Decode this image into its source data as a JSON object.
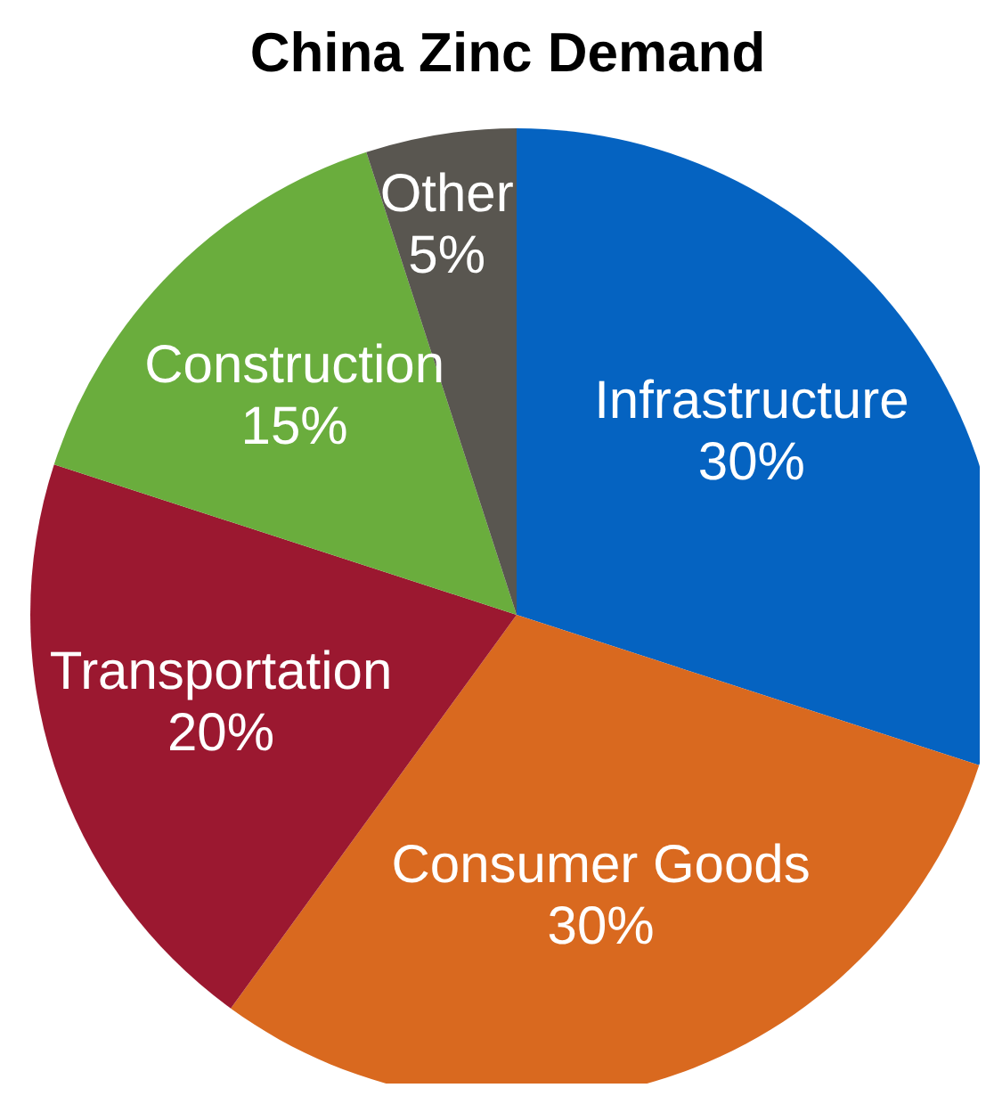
{
  "chart_data": {
    "type": "pie",
    "title": "China Zinc Demand",
    "categories": [
      "Infrastructure",
      "Consumer Goods",
      "Transportation",
      "Construction",
      "Other"
    ],
    "values": [
      30,
      30,
      20,
      15,
      5
    ],
    "value_labels": [
      "30%",
      "30%",
      "20%",
      "15%",
      "5%"
    ],
    "colors": [
      "#0563c1",
      "#d9691f",
      "#9b1830",
      "#6aad3d",
      "#595650"
    ]
  }
}
